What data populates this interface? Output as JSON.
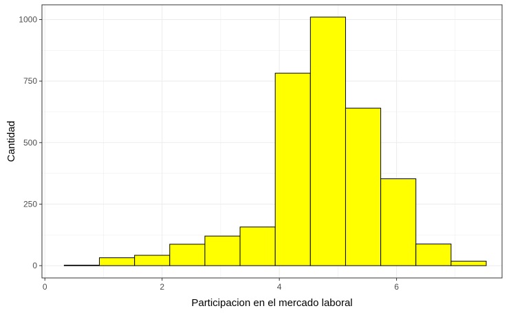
{
  "chart_data": {
    "type": "bar",
    "subtype": "histogram",
    "xlabel": "Participacion en el mercado laboral",
    "ylabel": "Cantidad",
    "xlim": [
      -0.05,
      7.8
    ],
    "ylim": [
      -50,
      1060
    ],
    "x_ticks": [
      0,
      2,
      4,
      6
    ],
    "y_ticks": [
      0,
      250,
      500,
      750,
      1000
    ],
    "x_tick_labels": [
      "0",
      "2",
      "4",
      "6"
    ],
    "y_tick_labels": [
      "0",
      "250",
      "500",
      "750",
      "1000"
    ],
    "grid": true,
    "bins": [
      {
        "x0": 0.33,
        "x1": 0.93,
        "value": 2
      },
      {
        "x0": 0.93,
        "x1": 1.53,
        "value": 32
      },
      {
        "x0": 1.53,
        "x1": 2.13,
        "value": 42
      },
      {
        "x0": 2.13,
        "x1": 2.73,
        "value": 87
      },
      {
        "x0": 2.73,
        "x1": 3.33,
        "value": 120
      },
      {
        "x0": 3.33,
        "x1": 3.93,
        "value": 157
      },
      {
        "x0": 3.93,
        "x1": 4.53,
        "value": 782
      },
      {
        "x0": 4.53,
        "x1": 5.13,
        "value": 1010
      },
      {
        "x0": 5.13,
        "x1": 5.73,
        "value": 640
      },
      {
        "x0": 5.73,
        "x1": 6.33,
        "value": 353
      },
      {
        "x0": 6.33,
        "x1": 6.93,
        "value": 88
      },
      {
        "x0": 6.93,
        "x1": 7.53,
        "value": 18
      }
    ],
    "colors": {
      "bar_fill": "#ffff00",
      "bar_stroke": "#000000",
      "grid": "#ebebeb",
      "panel_border": "#333333",
      "tick_label": "#4d4d4d"
    }
  }
}
